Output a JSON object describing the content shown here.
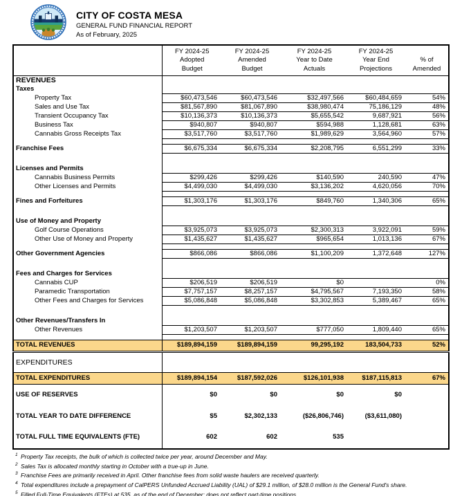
{
  "header": {
    "title": "CITY OF COSTA MESA",
    "subtitle": "GENERAL FUND FINANCIAL REPORT",
    "as_of": "As of February, 2025",
    "logo": "costa-mesa-city-seal"
  },
  "colors": {
    "row_highlight": "#fbd78b",
    "footnote_marker": "#e53224",
    "seal_blue": "#2b6cb5"
  },
  "table": {
    "columns": [
      {
        "lines": []
      },
      {
        "lines": [
          "FY 2024-25",
          "Adopted",
          "Budget"
        ]
      },
      {
        "lines": [
          "FY 2024-25",
          "Amended",
          "Budget"
        ]
      },
      {
        "lines": [
          "FY 2024-25",
          "Year to Date",
          "Actuals"
        ]
      },
      {
        "lines": [
          "FY 2024-25",
          "Year End",
          "Projections"
        ]
      },
      {
        "lines": [
          "% of",
          "Amended"
        ]
      }
    ],
    "rows": [
      {
        "type": "section",
        "size": "lg",
        "label": "REVENUES"
      },
      {
        "type": "section",
        "label": "Taxes"
      },
      {
        "type": "data",
        "indent": true,
        "label": "Property Tax",
        "values": [
          "$60,473,546",
          "$60,473,546",
          "$32,497,566",
          "$60,484,659",
          "54%"
        ],
        "note": {
          "col": 2,
          "num": "1"
        }
      },
      {
        "type": "data",
        "indent": true,
        "label": "Sales and Use Tax",
        "values": [
          "$81,567,890",
          "$81,067,890",
          "$38,980,474",
          "75,186,129",
          "48%"
        ],
        "note": {
          "col": 2,
          "num": "2"
        }
      },
      {
        "type": "data",
        "indent": true,
        "label": "Transient Occupancy Tax",
        "values": [
          "$10,136,373",
          "$10,136,373",
          "$5,655,542",
          "9,687,921",
          "56%"
        ]
      },
      {
        "type": "data",
        "indent": true,
        "label": "Business Tax",
        "values": [
          "$940,807",
          "$940,807",
          "$594,988",
          "1,128,681",
          "63%"
        ]
      },
      {
        "type": "data",
        "indent": true,
        "label": "Cannabis Gross Receipts Tax",
        "values": [
          "$3,517,760",
          "$3,517,760",
          "$1,989,629",
          "3,564,960",
          "57%"
        ]
      },
      {
        "type": "spacer"
      },
      {
        "type": "data",
        "bold": true,
        "label": "Franchise Fees",
        "values": [
          "$6,675,334",
          "$6,675,334",
          "$2,208,795",
          "6,551,299",
          "33%"
        ],
        "note": {
          "col": 2,
          "num": "3"
        }
      },
      {
        "type": "spacer",
        "h": "lg"
      },
      {
        "type": "section",
        "label": "Licenses and Permits"
      },
      {
        "type": "data",
        "indent": true,
        "label": "Cannabis Business Permits",
        "values": [
          "$299,426",
          "$299,426",
          "$140,590",
          "240,590",
          "47%"
        ]
      },
      {
        "type": "data",
        "indent": true,
        "label": "Other Licenses and Permits",
        "values": [
          "$4,499,030",
          "$4,499,030",
          "$3,136,202",
          "4,620,056",
          "70%"
        ]
      },
      {
        "type": "spacer"
      },
      {
        "type": "data",
        "bold": true,
        "label": "Fines and Forfeitures",
        "values": [
          "$1,303,176",
          "$1,303,176",
          "$849,760",
          "1,340,306",
          "65%"
        ]
      },
      {
        "type": "spacer",
        "h": "lg"
      },
      {
        "type": "section",
        "label": "Use of Money and Property"
      },
      {
        "type": "data",
        "indent": true,
        "label": "Golf Course Operations",
        "values": [
          "$3,925,073",
          "$3,925,073",
          "$2,300,313",
          "3,922,091",
          "59%"
        ]
      },
      {
        "type": "data",
        "indent": true,
        "label": "Other Use of Money and Property",
        "values": [
          "$1,435,627",
          "$1,435,627",
          "$965,654",
          "1,013,136",
          "67%"
        ]
      },
      {
        "type": "spacer"
      },
      {
        "type": "data",
        "bold": true,
        "label": "Other Government Agencies",
        "values": [
          "$866,086",
          "$866,086",
          "$1,100,209",
          "1,372,648",
          "127%"
        ]
      },
      {
        "type": "spacer",
        "h": "lg"
      },
      {
        "type": "section",
        "label": "Fees and Charges for Services"
      },
      {
        "type": "data",
        "indent": true,
        "label": "Cannabis CUP",
        "values": [
          "$206,519",
          "$206,519",
          "$0",
          "",
          "0%"
        ]
      },
      {
        "type": "data",
        "indent": true,
        "label": "Paramedic Transportation",
        "values": [
          "$7,757,157",
          "$8,257,157",
          "$4,795,567",
          "7,193,350",
          "58%"
        ]
      },
      {
        "type": "data",
        "indent": true,
        "label": "Other Fees and Charges for Services",
        "values": [
          "$5,086,848",
          "$5,086,848",
          "$3,302,853",
          "5,389,467",
          "65%"
        ]
      },
      {
        "type": "spacer",
        "h": "lg"
      },
      {
        "type": "section",
        "label": "Other Revenues/Transfers In"
      },
      {
        "type": "data",
        "indent": true,
        "label": "Other Revenues",
        "values": [
          "$1,203,507",
          "$1,203,507",
          "$777,050",
          "1,809,440",
          "65%"
        ]
      },
      {
        "type": "spacer"
      },
      {
        "type": "total",
        "dbl": true,
        "label": "TOTAL REVENUES",
        "values": [
          "$189,894,159",
          "$189,894,159",
          "99,295,192",
          "183,504,733",
          "52%"
        ]
      },
      {
        "type": "exphead",
        "size": "lg",
        "label": "EXPENDITURES"
      },
      {
        "type": "total",
        "label": "TOTAL EXPENDITURES",
        "values": [
          "$189,894,154",
          "$187,592,026",
          "$126,101,938",
          "$187,115,813",
          "67%"
        ],
        "note": {
          "col": 2,
          "num": "4"
        }
      },
      {
        "type": "big",
        "label": "USE OF RESERVES",
        "values": [
          "$0",
          "$0",
          "$0",
          "$0",
          ""
        ]
      },
      {
        "type": "big",
        "label": "TOTAL YEAR TO DATE DIFFERENCE",
        "values": [
          "$5",
          "$2,302,133",
          "($26,806,746)",
          "($3,611,080)",
          ""
        ]
      },
      {
        "type": "big",
        "label": "TOTAL FULL TIME EQUIVALENTS (FTE)",
        "values": [
          "602",
          "602",
          "535",
          "",
          ""
        ],
        "note": {
          "col": 2,
          "num": "5"
        }
      }
    ]
  },
  "footnotes": [
    {
      "num": "1",
      "text": "Property Tax receipts, the bulk of which is collected twice per year, around December and May."
    },
    {
      "num": "2",
      "text": "Sales Tax is allocated monthly starting in October with a true-up in June."
    },
    {
      "num": "3",
      "text": "Franchise Fees are primarily received in April. Other franchise fees from solid waste haulers are received quarterly."
    },
    {
      "num": "4",
      "text": "Total expenditures include a prepayment of CalPERS Unfunded Accrued Liability (UAL) of $29.1 million, of $28.0 million is the General Fund's share."
    },
    {
      "num": "5",
      "text": "Filled Full-Time Equivalents (FTEs) at 535, as of the end of December; does not reflect part-time positions."
    }
  ]
}
